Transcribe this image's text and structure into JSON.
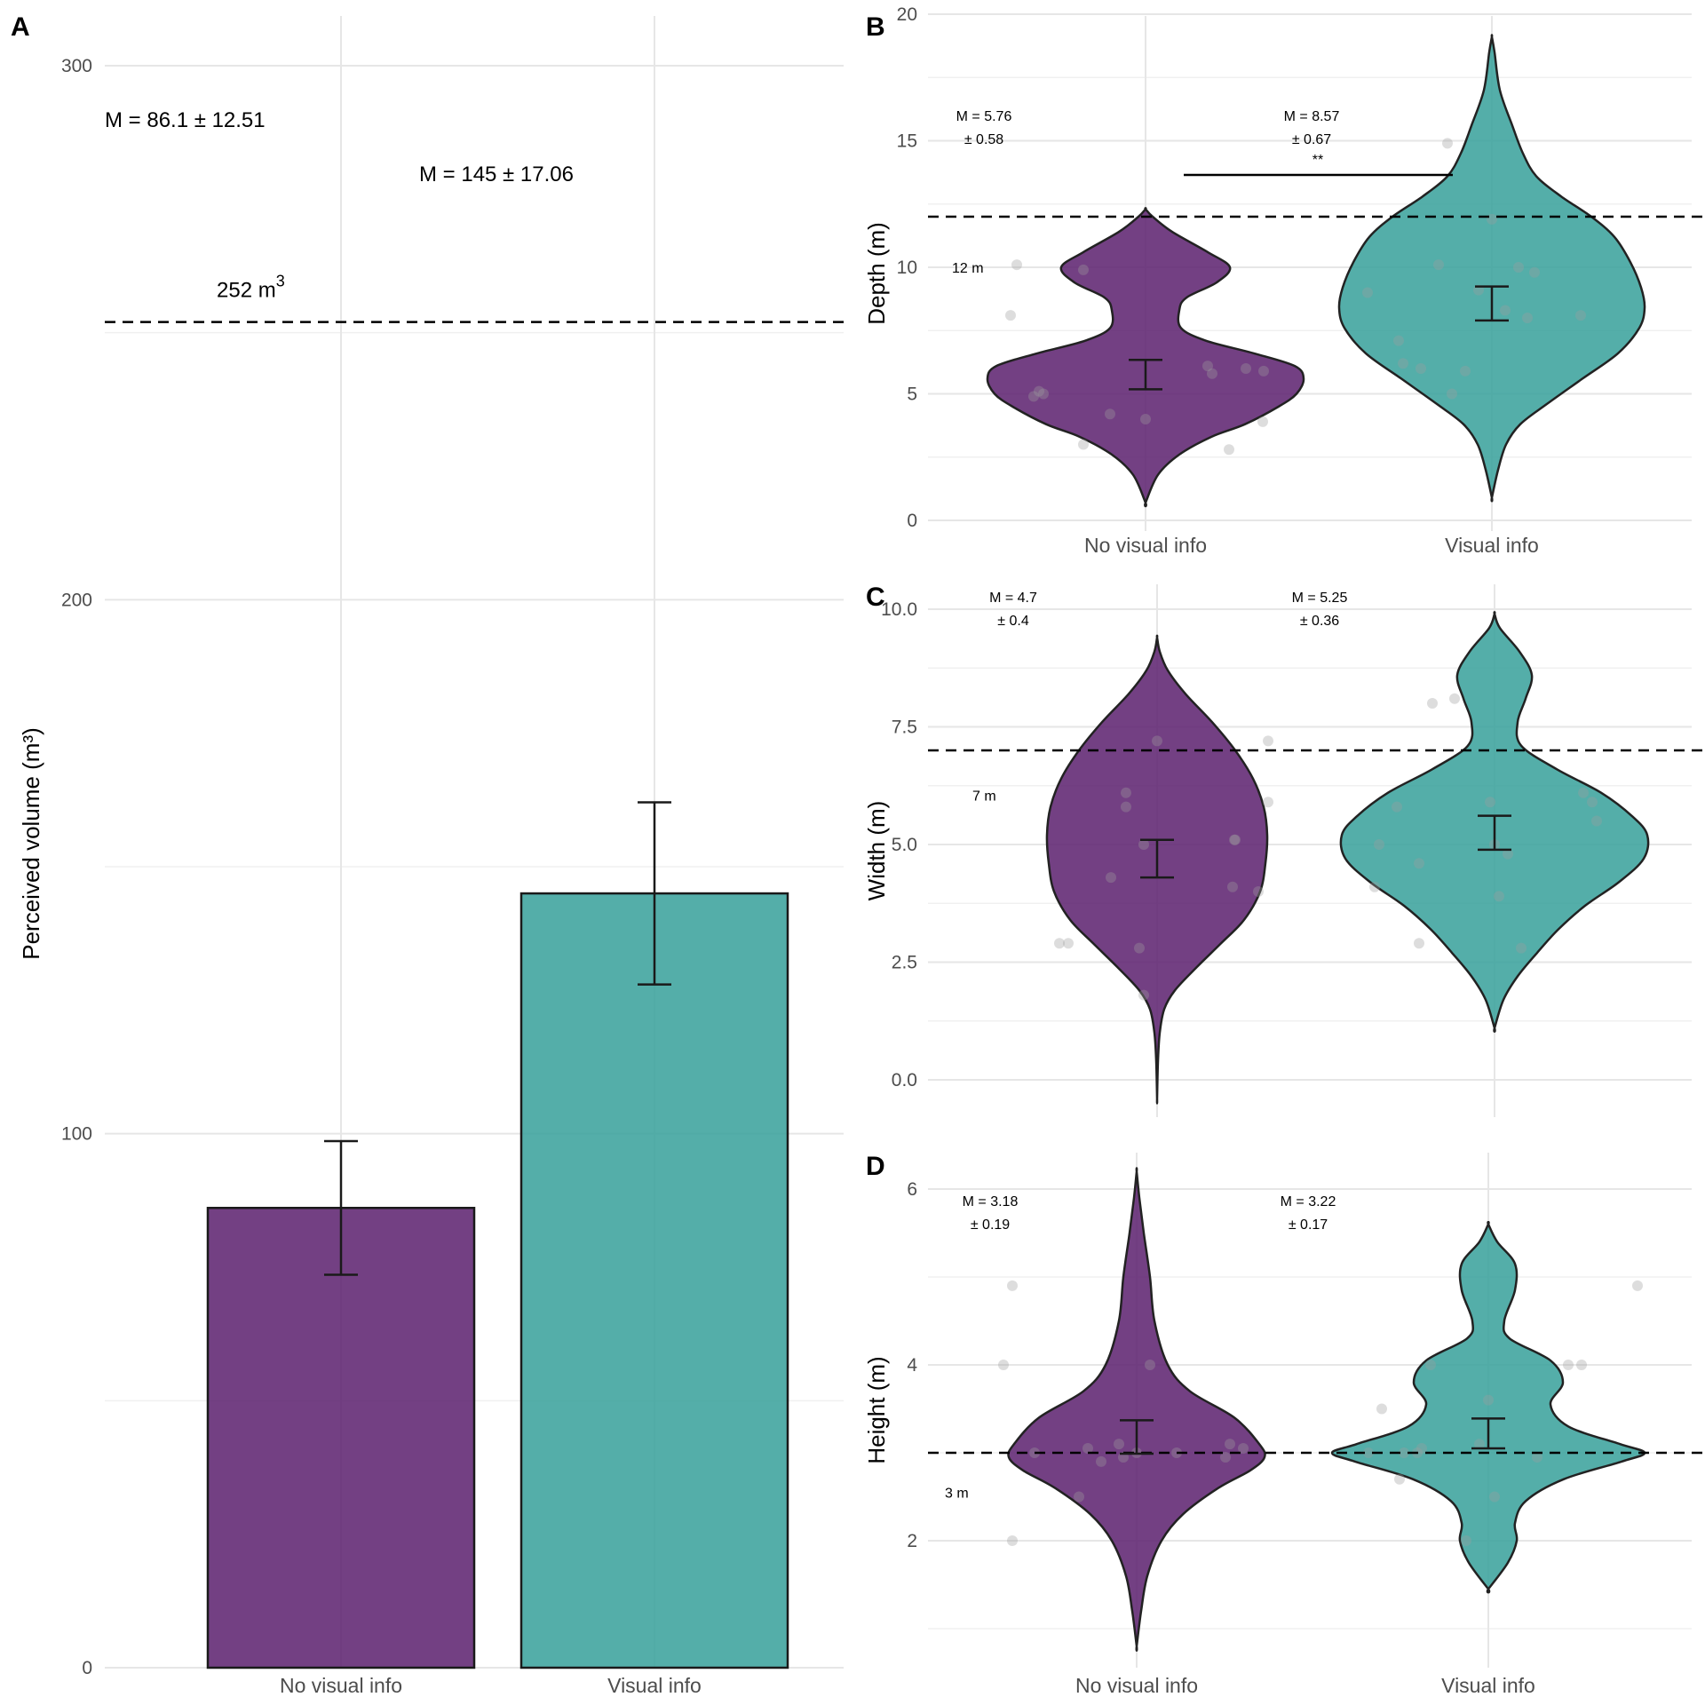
{
  "colors": {
    "no_visual": "#5e2470",
    "visual": "#3ba29c",
    "outline": "#1a1a1a",
    "point": "#bdbdbd"
  },
  "chart_data": [
    {
      "panel": "A",
      "type": "bar",
      "ylabel": "Perceived volume (m³)",
      "ylim": [
        0,
        310
      ],
      "yticks": [
        "0",
        "100",
        "200",
        "300"
      ],
      "categories": [
        "No visual info",
        "Visual info"
      ],
      "values": [
        86.1,
        145
      ],
      "errors": [
        12.51,
        17.06
      ],
      "annotations": [
        "M = 86.1 ± 12.51",
        "M = 145 ± 17.06"
      ],
      "reference": {
        "value": 252,
        "label": "252 m",
        "label_sup": "3"
      }
    },
    {
      "panel": "B",
      "type": "violin",
      "ylabel": "Depth (m)",
      "ylim": [
        0,
        20
      ],
      "yticks": [
        "0",
        "5",
        "10",
        "15",
        "20"
      ],
      "categories": [
        "No visual info",
        "Visual info"
      ],
      "means": [
        5.76,
        8.57
      ],
      "errors": [
        0.58,
        0.67
      ],
      "annotations": [
        [
          "M = 5.76",
          "± 0.58"
        ],
        [
          "M = 8.57",
          "± 0.67"
        ]
      ],
      "reference": {
        "value": 12,
        "label": "12 m"
      },
      "significance": "**",
      "points": [
        [
          10.1,
          9.9,
          8.1,
          6.1,
          6.0,
          5.9,
          5.8,
          5.1,
          5.0,
          4.9,
          4.2,
          4.0,
          3.9,
          3.0,
          2.8
        ],
        [
          14.9,
          11.9,
          10.1,
          10.0,
          9.8,
          9.1,
          9.0,
          8.3,
          8.1,
          8.0,
          7.1,
          6.2,
          6.0,
          5.9,
          5.0
        ]
      ]
    },
    {
      "panel": "C",
      "type": "violin",
      "ylabel": "Width (m)",
      "ylim": [
        0,
        10
      ],
      "yticks": [
        "0.0",
        "2.5",
        "5.0",
        "7.5",
        "10.0"
      ],
      "categories": [
        "No visual info",
        "Visual info"
      ],
      "means": [
        4.7,
        5.25
      ],
      "errors": [
        0.4,
        0.36
      ],
      "annotations": [
        [
          "M = 4.7",
          "± 0.4"
        ],
        [
          "M = 5.25",
          "± 0.36"
        ]
      ],
      "reference": {
        "value": 7,
        "label": "7 m"
      },
      "points": [
        [
          7.2,
          7.2,
          6.1,
          5.9,
          5.8,
          5.1,
          5.1,
          5.0,
          4.3,
          4.1,
          4.0,
          2.9,
          2.9,
          2.8,
          1.8
        ],
        [
          8.1,
          8.0,
          6.1,
          5.9,
          5.9,
          5.8,
          5.5,
          5.0,
          5.0,
          4.8,
          4.6,
          4.1,
          3.9,
          2.9,
          2.8
        ]
      ]
    },
    {
      "panel": "D",
      "type": "violin",
      "ylabel": "Height (m)",
      "ylim": [
        1,
        6
      ],
      "yticks": [
        "2",
        "4",
        "6"
      ],
      "categories": [
        "No visual info",
        "Visual info"
      ],
      "means": [
        3.18,
        3.22
      ],
      "errors": [
        0.19,
        0.17
      ],
      "annotations": [
        [
          "M = 3.18",
          "± 0.19"
        ],
        [
          "M = 3.22",
          "± 0.17"
        ]
      ],
      "reference": {
        "value": 3,
        "label": "3 m"
      },
      "points": [
        [
          4.9,
          4.0,
          4.0,
          3.1,
          3.1,
          3.05,
          3.05,
          3.0,
          3.0,
          3.0,
          2.95,
          2.95,
          2.9,
          2.5,
          2.0
        ],
        [
          4.9,
          4.0,
          4.0,
          4.0,
          3.6,
          3.5,
          3.1,
          3.05,
          3.0,
          3.0,
          3.0,
          2.95,
          2.7,
          2.5,
          2.0
        ]
      ]
    }
  ]
}
